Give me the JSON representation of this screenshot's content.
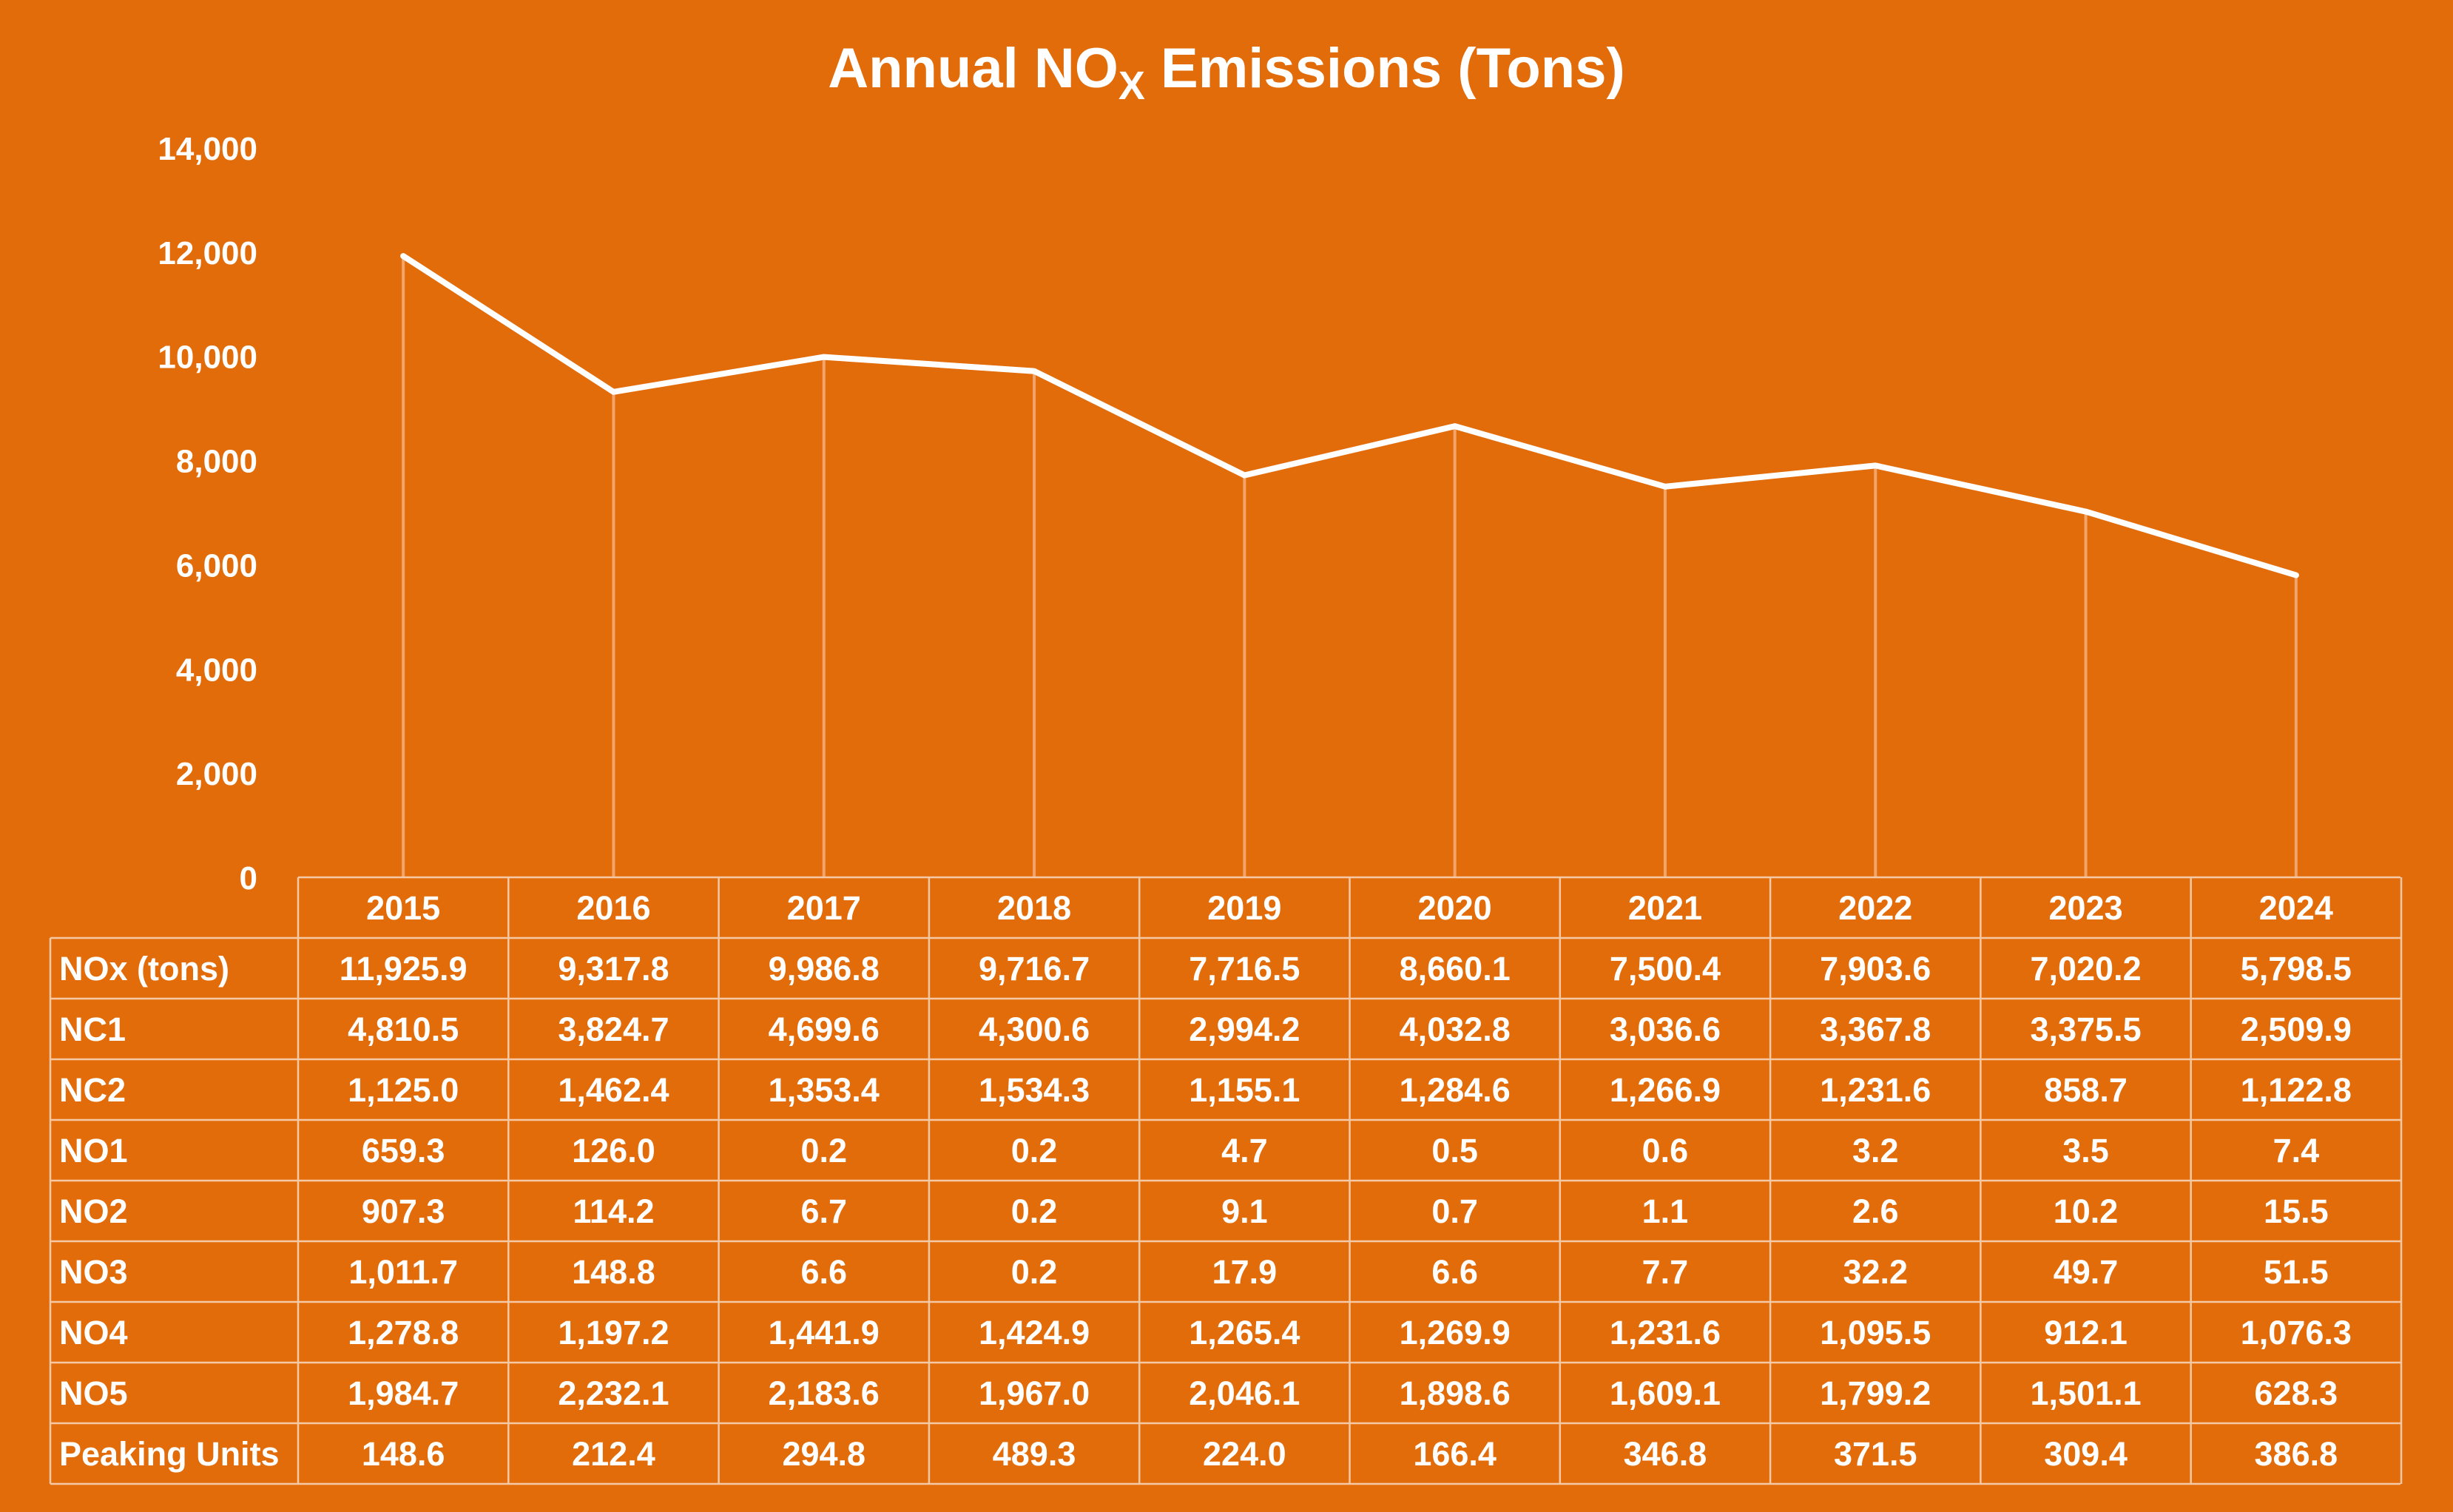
{
  "chart_data": {
    "type": "line",
    "title": "Annual NO",
    "title_subscript": "X",
    "title_suffix": " Emissions (Tons)",
    "y_ticks": [
      "0",
      "2,000",
      "4,000",
      "6,000",
      "8,000",
      "10,000",
      "12,000",
      "14,000"
    ],
    "ylim": [
      0,
      14000
    ],
    "grid": "vertical drop lines at categories",
    "categories": [
      "2015",
      "2016",
      "2017",
      "2018",
      "2019",
      "2020",
      "2021",
      "2022",
      "2023",
      "2024"
    ],
    "plotted_series": "NOx (tons)",
    "series": [
      {
        "name": "NOx (tons)",
        "values": [
          11925.9,
          9317.8,
          9986.8,
          9716.7,
          7716.5,
          8660.1,
          7500.4,
          7903.6,
          7020.2,
          5798.5
        ],
        "labels": [
          "11,925.9",
          "9,317.8",
          "9,986.8",
          "9,716.7",
          "7,716.5",
          "8,660.1",
          "7,500.4",
          "7,903.6",
          "7,020.2",
          "5,798.5"
        ]
      },
      {
        "name": "NC1",
        "values": [
          4810.5,
          3824.7,
          4699.6,
          4300.6,
          2994.2,
          4032.8,
          3036.6,
          3367.8,
          3375.5,
          2509.9
        ],
        "labels": [
          "4,810.5",
          "3,824.7",
          "4,699.6",
          "4,300.6",
          "2,994.2",
          "4,032.8",
          "3,036.6",
          "3,367.8",
          "3,375.5",
          "2,509.9"
        ]
      },
      {
        "name": "NC2",
        "values": [
          1125.0,
          1462.4,
          1353.4,
          1534.3,
          1155.1,
          1284.6,
          1266.9,
          1231.6,
          858.7,
          1122.8
        ],
        "labels": [
          "1,125.0",
          "1,462.4",
          "1,353.4",
          "1,534.3",
          "1,155.1",
          "1,284.6",
          "1,266.9",
          "1,231.6",
          "858.7",
          "1,122.8"
        ]
      },
      {
        "name": "NO1",
        "values": [
          659.3,
          126.0,
          0.2,
          0.2,
          4.7,
          0.5,
          0.6,
          3.2,
          3.5,
          7.4
        ],
        "labels": [
          "659.3",
          "126.0",
          "0.2",
          "0.2",
          "4.7",
          "0.5",
          "0.6",
          "3.2",
          "3.5",
          "7.4"
        ]
      },
      {
        "name": "NO2",
        "values": [
          907.3,
          114.2,
          6.7,
          0.2,
          9.1,
          0.7,
          1.1,
          2.6,
          10.2,
          15.5
        ],
        "labels": [
          "907.3",
          "114.2",
          "6.7",
          "0.2",
          "9.1",
          "0.7",
          "1.1",
          "2.6",
          "10.2",
          "15.5"
        ]
      },
      {
        "name": "NO3",
        "values": [
          1011.7,
          148.8,
          6.6,
          0.2,
          17.9,
          6.6,
          7.7,
          32.2,
          49.7,
          51.5
        ],
        "labels": [
          "1,011.7",
          "148.8",
          "6.6",
          "0.2",
          "17.9",
          "6.6",
          "7.7",
          "32.2",
          "49.7",
          "51.5"
        ]
      },
      {
        "name": "NO4",
        "values": [
          1278.8,
          1197.2,
          1441.9,
          1424.9,
          1265.4,
          1269.9,
          1231.6,
          1095.5,
          912.1,
          1076.3
        ],
        "labels": [
          "1,278.8",
          "1,197.2",
          "1,441.9",
          "1,424.9",
          "1,265.4",
          "1,269.9",
          "1,231.6",
          "1,095.5",
          "912.1",
          "1,076.3"
        ]
      },
      {
        "name": "NO5",
        "values": [
          1984.7,
          2232.1,
          2183.6,
          1967.0,
          2046.1,
          1898.6,
          1609.1,
          1799.2,
          1501.1,
          628.3
        ],
        "labels": [
          "1,984.7",
          "2,232.1",
          "2,183.6",
          "1,967.0",
          "2,046.1",
          "1,898.6",
          "1,609.1",
          "1,799.2",
          "1,501.1",
          "628.3"
        ]
      },
      {
        "name": "Peaking Units",
        "values": [
          148.6,
          212.4,
          294.8,
          489.3,
          224.0,
          166.4,
          346.8,
          371.5,
          309.4,
          386.8
        ],
        "labels": [
          "148.6",
          "212.4",
          "294.8",
          "489.3",
          "224.0",
          "166.4",
          "346.8",
          "371.5",
          "309.4",
          "386.8"
        ]
      }
    ],
    "colors": {
      "background": "#e36c0a",
      "line": "#ffffff",
      "text": "#ffffff"
    }
  }
}
